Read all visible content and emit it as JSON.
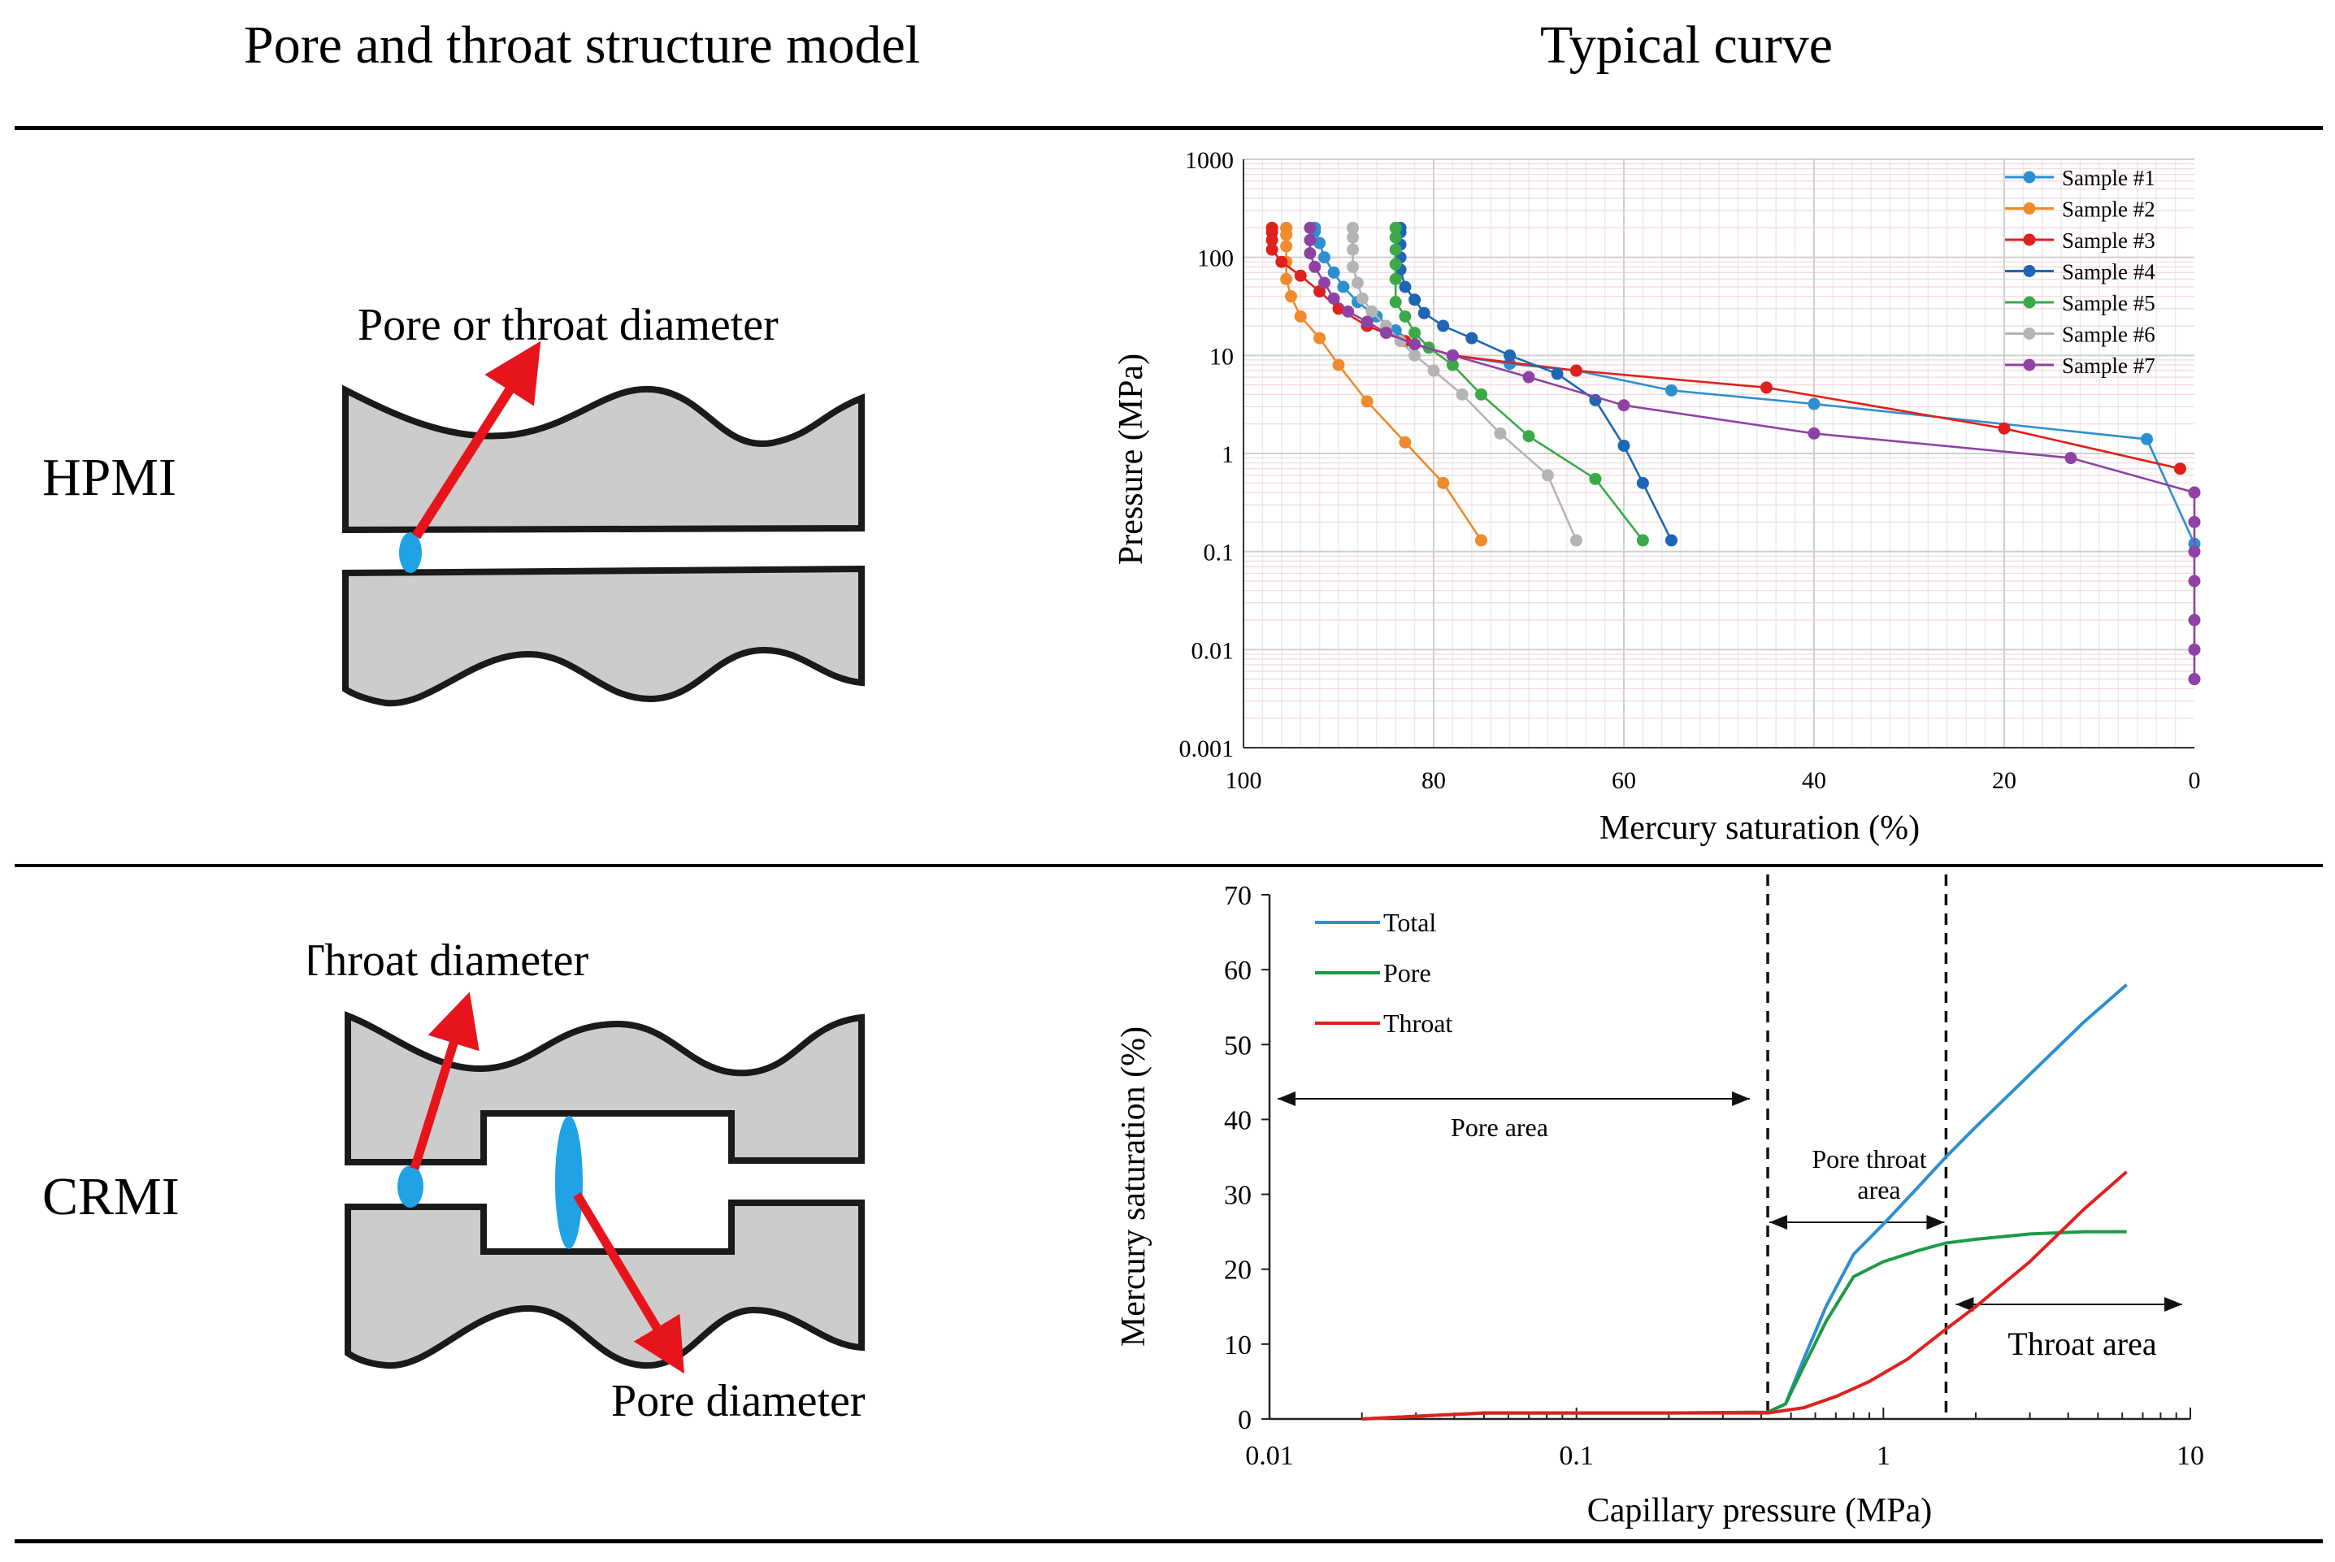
{
  "headers": {
    "model": "Pore and throat structure model",
    "curve": "Typical curve"
  },
  "rows": [
    {
      "label": "HPMI",
      "annotations": [
        "Pore or throat diameter"
      ]
    },
    {
      "label": "CRMI",
      "annotations": [
        "Throat diameter",
        "Pore diameter"
      ]
    }
  ],
  "colors": {
    "gray_fill": "#cccccc",
    "outline": "#1a1a1a",
    "arrow": "#e8141c",
    "ellipse": "#1fa3e6"
  },
  "chart_data": [
    {
      "type": "line",
      "title": "",
      "xlabel": "Mercury saturation (%)",
      "ylabel": "Pressure (MPa)",
      "x_reversed": true,
      "xlim": [
        100,
        0
      ],
      "ylim": [
        0.001,
        1000
      ],
      "yscale": "log",
      "xticks": [
        "100",
        "80",
        "60",
        "40",
        "20",
        "0"
      ],
      "yticks": [
        "1000",
        "100",
        "10",
        "1",
        "0.1",
        "0.01",
        "0.001"
      ],
      "grid": true,
      "legend_position": "top-right",
      "series": [
        {
          "name": "Sample #1",
          "color": "#2e8fd0",
          "points": [
            [
              0,
              0.12
            ],
            [
              5,
              1.4
            ],
            [
              40,
              3.2
            ],
            [
              55,
              4.4
            ],
            [
              65,
              7
            ],
            [
              72,
              8.2
            ],
            [
              78,
              10
            ],
            [
              82,
              13
            ],
            [
              84,
              18
            ],
            [
              86,
              25
            ],
            [
              88,
              35
            ],
            [
              89.5,
              50
            ],
            [
              90.5,
              70
            ],
            [
              91.5,
              100
            ],
            [
              92,
              140
            ],
            [
              92.5,
              185
            ],
            [
              92.5,
              200
            ]
          ]
        },
        {
          "name": "Sample #2",
          "color": "#f08a2c",
          "points": [
            [
              75,
              0.13
            ],
            [
              79,
              0.5
            ],
            [
              83,
              1.3
            ],
            [
              87,
              3.4
            ],
            [
              90,
              8
            ],
            [
              92,
              15
            ],
            [
              94,
              25
            ],
            [
              95,
              40
            ],
            [
              95.5,
              60
            ],
            [
              95.5,
              90
            ],
            [
              95.5,
              130
            ],
            [
              95.5,
              170
            ],
            [
              95.5,
              200
            ]
          ]
        },
        {
          "name": "Sample #3",
          "color": "#e0201c",
          "points": [
            [
              1.5,
              0.7
            ],
            [
              20,
              1.8
            ],
            [
              45,
              4.7
            ],
            [
              65,
              7
            ],
            [
              78,
              10
            ],
            [
              83,
              14
            ],
            [
              87,
              20
            ],
            [
              90,
              30
            ],
            [
              92,
              45
            ],
            [
              94,
              65
            ],
            [
              96,
              90
            ],
            [
              97,
              120
            ],
            [
              97,
              150
            ],
            [
              97,
              180
            ],
            [
              97,
              200
            ]
          ]
        },
        {
          "name": "Sample #4",
          "color": "#1e66b4",
          "points": [
            [
              55,
              0.13
            ],
            [
              58,
              0.5
            ],
            [
              60,
              1.2
            ],
            [
              63,
              3.5
            ],
            [
              67,
              6.5
            ],
            [
              72,
              10
            ],
            [
              76,
              15
            ],
            [
              79,
              20
            ],
            [
              81,
              27
            ],
            [
              82,
              37
            ],
            [
              83,
              50
            ],
            [
              83.5,
              75
            ],
            [
              83.5,
              100
            ],
            [
              83.5,
              135
            ],
            [
              83.5,
              180
            ],
            [
              83.5,
              200
            ]
          ]
        },
        {
          "name": "Sample #5",
          "color": "#3aaa48",
          "points": [
            [
              58,
              0.13
            ],
            [
              63,
              0.55
            ],
            [
              70,
              1.5
            ],
            [
              75,
              4
            ],
            [
              78,
              8
            ],
            [
              80.5,
              12
            ],
            [
              82,
              17
            ],
            [
              83,
              25
            ],
            [
              84,
              35
            ],
            [
              84,
              60
            ],
            [
              84,
              85
            ],
            [
              84,
              120
            ],
            [
              84,
              160
            ],
            [
              84,
              200
            ]
          ]
        },
        {
          "name": "Sample #6",
          "color": "#b4b4b4",
          "points": [
            [
              65,
              0.13
            ],
            [
              68,
              0.6
            ],
            [
              73,
              1.6
            ],
            [
              77,
              4
            ],
            [
              80,
              7
            ],
            [
              82,
              10
            ],
            [
              83.5,
              14
            ],
            [
              85,
              20
            ],
            [
              86.5,
              28
            ],
            [
              87.5,
              38
            ],
            [
              88,
              55
            ],
            [
              88.5,
              80
            ],
            [
              88.5,
              120
            ],
            [
              88.5,
              160
            ],
            [
              88.5,
              200
            ]
          ]
        },
        {
          "name": "Sample #7",
          "color": "#8e42a6",
          "points": [
            [
              0,
              0.005
            ],
            [
              0,
              0.01
            ],
            [
              0,
              0.02
            ],
            [
              0,
              0.05
            ],
            [
              0,
              0.1
            ],
            [
              0,
              0.2
            ],
            [
              0,
              0.4
            ],
            [
              13,
              0.9
            ],
            [
              40,
              1.6
            ],
            [
              60,
              3.1
            ],
            [
              70,
              6
            ],
            [
              78,
              10
            ],
            [
              82,
              13
            ],
            [
              85,
              17
            ],
            [
              87,
              22
            ],
            [
              89,
              28
            ],
            [
              90.5,
              38
            ],
            [
              91.5,
              55
            ],
            [
              92.5,
              80
            ],
            [
              93,
              110
            ],
            [
              93,
              150
            ],
            [
              93,
              200
            ]
          ]
        }
      ]
    },
    {
      "type": "line",
      "title": "",
      "xlabel": "Capillary pressure (MPa)",
      "ylabel": "Mercury saturation (%)",
      "xscale": "log",
      "xlim": [
        0.01,
        10
      ],
      "ylim": [
        0,
        70
      ],
      "xticks": [
        "0.01",
        "0.1",
        "1",
        "10"
      ],
      "yticks": [
        "0",
        "10",
        "20",
        "30",
        "40",
        "50",
        "60",
        "70"
      ],
      "grid": false,
      "legend_position": "top-left",
      "series": [
        {
          "name": "Total",
          "color": "#2e8fd0",
          "points": [
            [
              0.02,
              0
            ],
            [
              0.05,
              0.8
            ],
            [
              0.2,
              0.8
            ],
            [
              0.42,
              0.9
            ],
            [
              0.48,
              2
            ],
            [
              0.55,
              8
            ],
            [
              0.65,
              15
            ],
            [
              0.8,
              22
            ],
            [
              1,
              26
            ],
            [
              1.3,
              31
            ],
            [
              1.6,
              35
            ],
            [
              2,
              39
            ],
            [
              3,
              46
            ],
            [
              4.5,
              53
            ],
            [
              6.2,
              58
            ]
          ]
        },
        {
          "name": "Pore",
          "color": "#1e9a46",
          "points": [
            [
              0.02,
              0
            ],
            [
              0.05,
              0.8
            ],
            [
              0.2,
              0.8
            ],
            [
              0.42,
              0.9
            ],
            [
              0.48,
              2
            ],
            [
              0.55,
              7
            ],
            [
              0.65,
              13
            ],
            [
              0.8,
              19
            ],
            [
              1,
              21
            ],
            [
              1.3,
              22.5
            ],
            [
              1.6,
              23.5
            ],
            [
              2,
              24
            ],
            [
              3,
              24.7
            ],
            [
              4.5,
              25
            ],
            [
              6.2,
              25
            ]
          ]
        },
        {
          "name": "Throat",
          "color": "#e0201c",
          "points": [
            [
              0.02,
              0
            ],
            [
              0.05,
              0.8
            ],
            [
              0.2,
              0.8
            ],
            [
              0.42,
              0.8
            ],
            [
              0.55,
              1.5
            ],
            [
              0.7,
              3
            ],
            [
              0.9,
              5
            ],
            [
              1.2,
              8
            ],
            [
              1.6,
              12
            ],
            [
              2,
              15
            ],
            [
              3,
              21
            ],
            [
              4.5,
              28
            ],
            [
              6.2,
              33
            ]
          ]
        }
      ],
      "annotations": [
        {
          "text": "Pore area"
        },
        {
          "text": "Pore throat area"
        },
        {
          "text": "Throat area"
        }
      ],
      "regions": [
        {
          "name": "Pore area",
          "from": 0.01,
          "to": 0.42
        },
        {
          "name": "Pore throat area",
          "from": 0.42,
          "to": 1.6
        },
        {
          "name": "Throat area",
          "from": 1.6,
          "to": 10
        }
      ],
      "dashed_lines_x": [
        0.42,
        1.6
      ]
    }
  ]
}
